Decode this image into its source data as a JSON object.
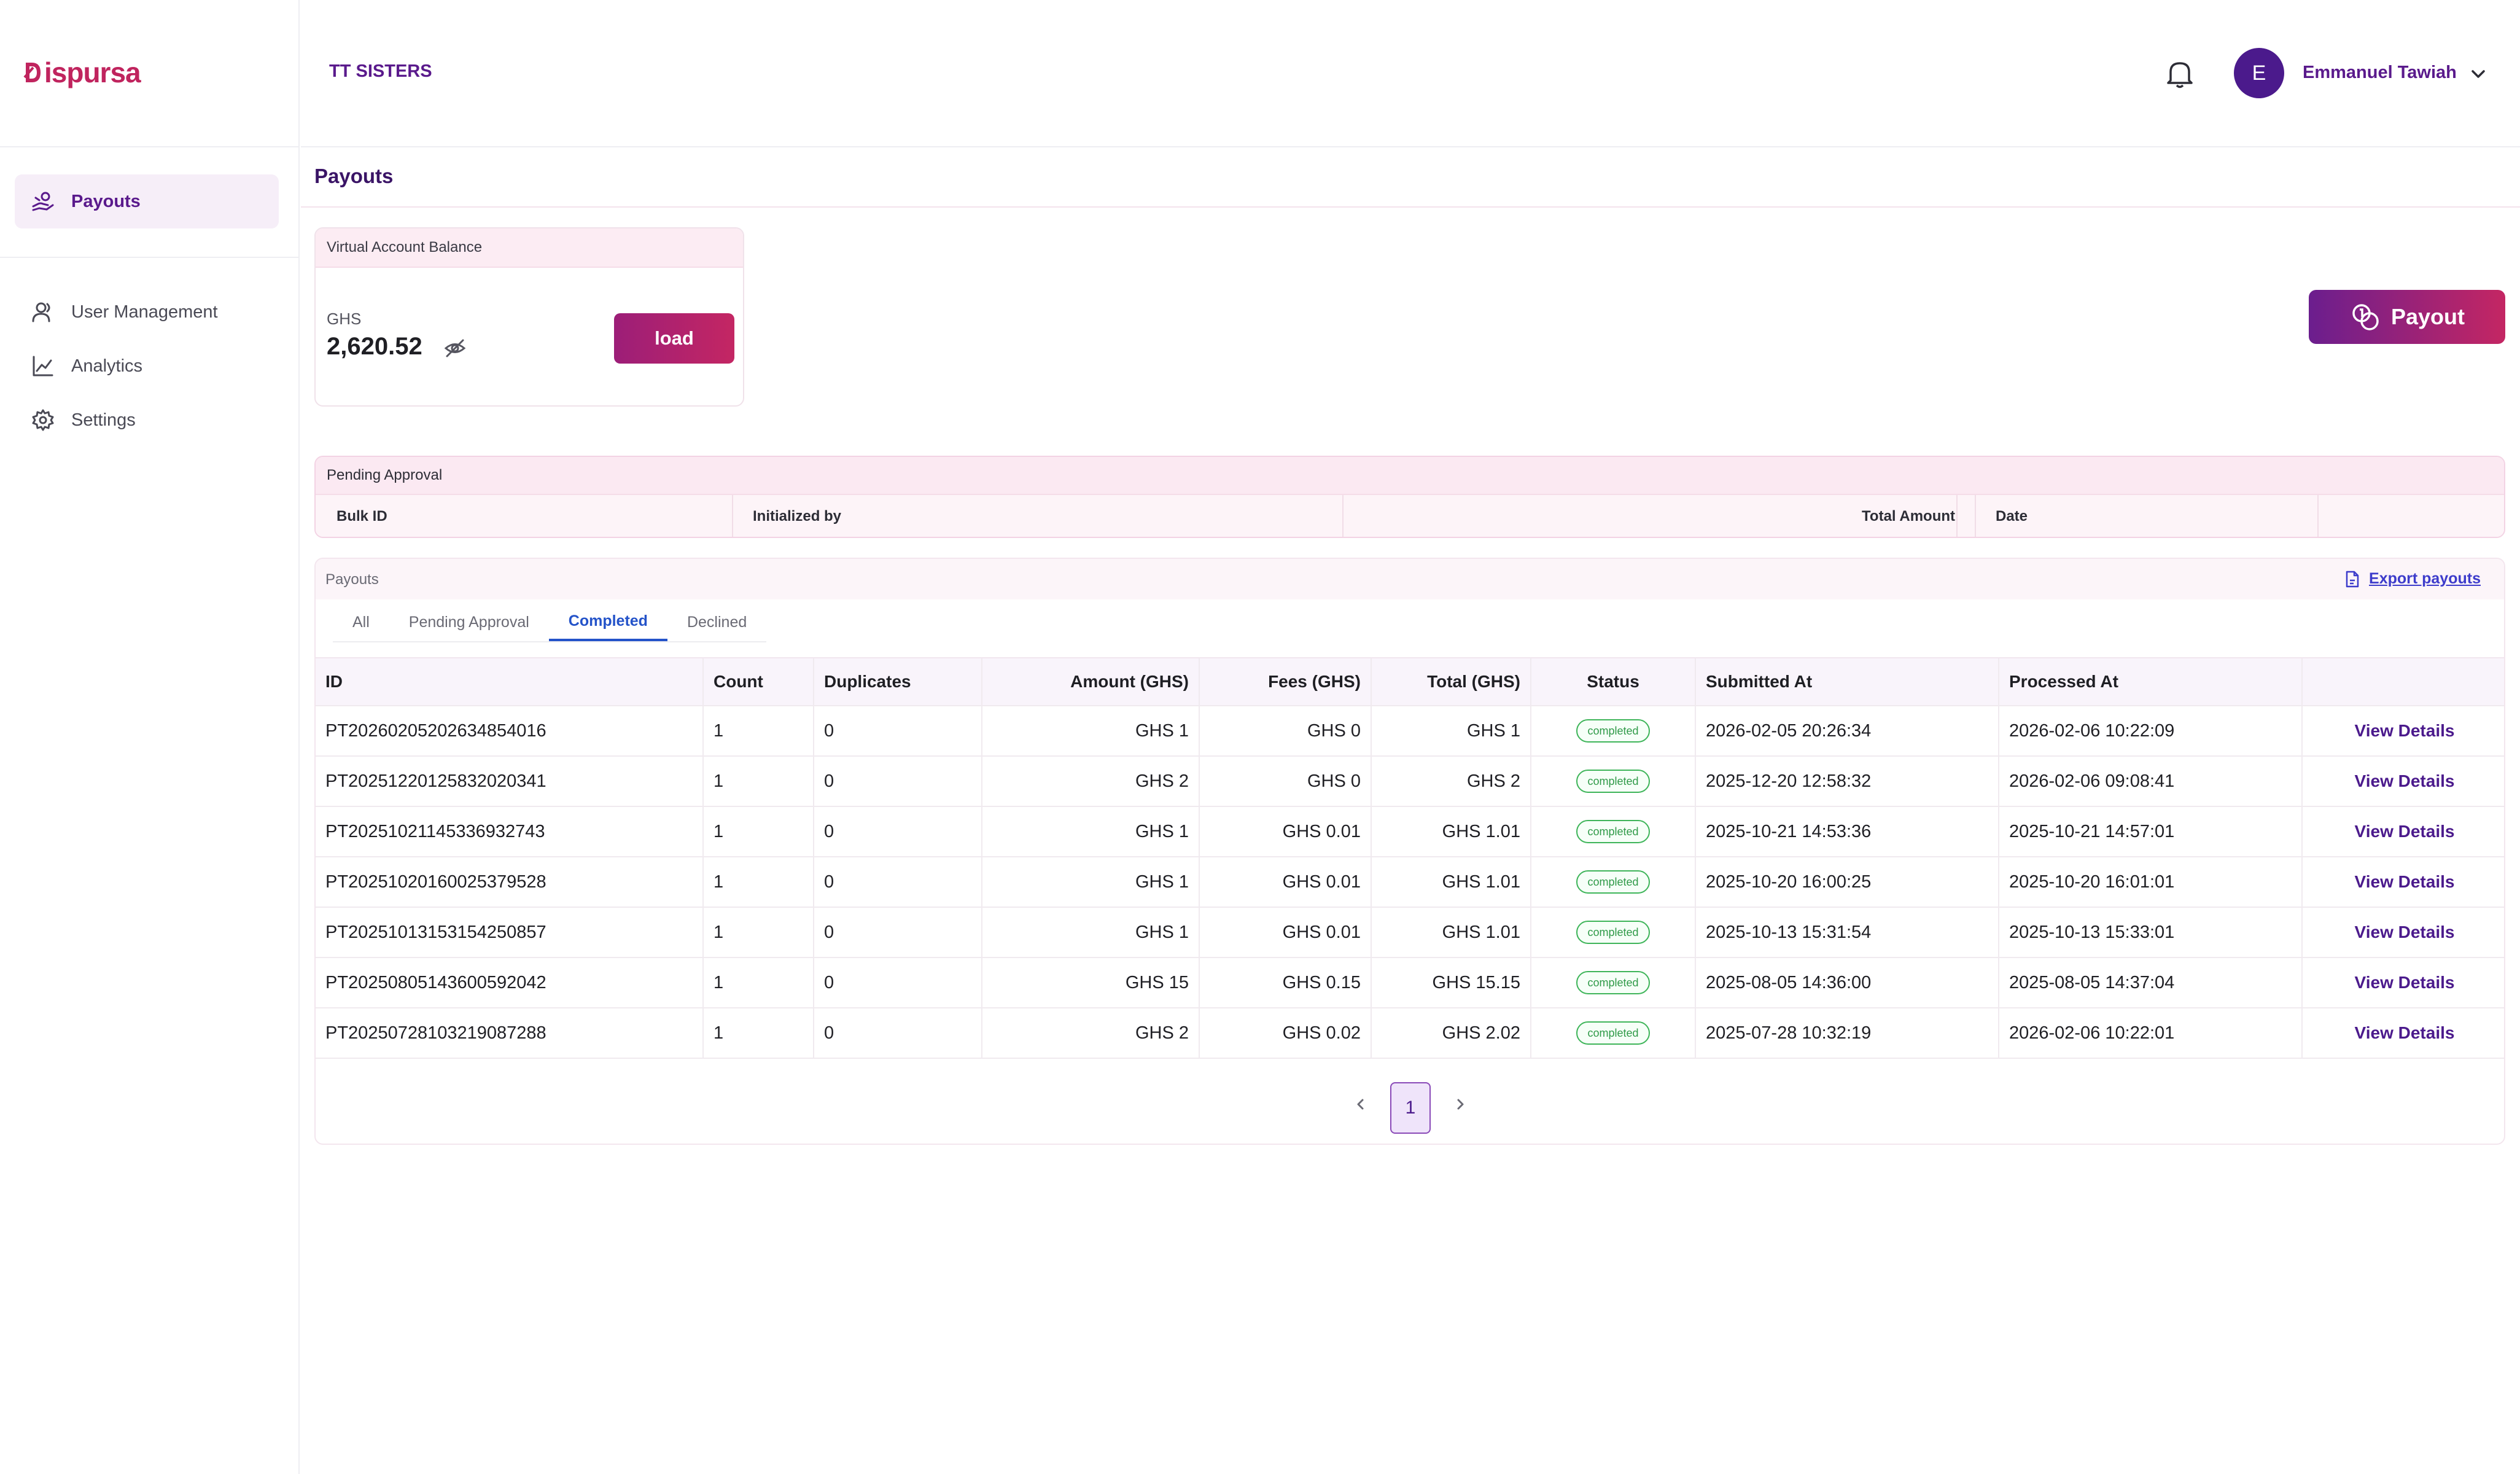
{
  "brand": {
    "logo_text": "ispursa",
    "accent": "#c0245e"
  },
  "sidebar": {
    "items": [
      {
        "label": "Payouts",
        "icon": "payout-hand-icon",
        "active": true
      },
      {
        "label": "User Management",
        "icon": "user-icon"
      },
      {
        "label": "Analytics",
        "icon": "analytics-chart-icon"
      },
      {
        "label": "Settings",
        "icon": "gear-icon"
      }
    ]
  },
  "header": {
    "org_name": "TT SISTERS",
    "user_initial": "E",
    "user_name": "Emmanuel Tawiah"
  },
  "page": {
    "title": "Payouts"
  },
  "balance": {
    "title": "Virtual Account Balance",
    "currency": "GHS",
    "amount": "2,620.52",
    "load_label": "load"
  },
  "payout_button": {
    "label": "Payout"
  },
  "pending": {
    "title": "Pending Approval",
    "columns": [
      "Bulk ID",
      "Initialized by",
      "",
      "Total Amount",
      "Date",
      ""
    ]
  },
  "payouts": {
    "title": "Payouts",
    "export_label": "Export payouts",
    "tabs": [
      "All",
      "Pending Approval",
      "Completed",
      "Declined"
    ],
    "active_tab": "Completed",
    "columns": [
      "ID",
      "Count",
      "Duplicates",
      "Amount (GHS)",
      "Fees (GHS)",
      "Total (GHS)",
      "Status",
      "Submitted At",
      "Processed At",
      ""
    ],
    "rows": [
      {
        "id": "PT20260205202634854016",
        "count": "1",
        "duplicates": "0",
        "amount": "GHS 1",
        "fees": "GHS 0",
        "total": "GHS 1",
        "status": "completed",
        "submitted": "2026-02-05 20:26:34",
        "processed": "2026-02-06 10:22:09",
        "action": "View Details"
      },
      {
        "id": "PT20251220125832020341",
        "count": "1",
        "duplicates": "0",
        "amount": "GHS 2",
        "fees": "GHS 0",
        "total": "GHS 2",
        "status": "completed",
        "submitted": "2025-12-20 12:58:32",
        "processed": "2026-02-06 09:08:41",
        "action": "View Details"
      },
      {
        "id": "PT20251021145336932743",
        "count": "1",
        "duplicates": "0",
        "amount": "GHS 1",
        "fees": "GHS 0.01",
        "total": "GHS 1.01",
        "status": "completed",
        "submitted": "2025-10-21 14:53:36",
        "processed": "2025-10-21 14:57:01",
        "action": "View Details"
      },
      {
        "id": "PT20251020160025379528",
        "count": "1",
        "duplicates": "0",
        "amount": "GHS 1",
        "fees": "GHS 0.01",
        "total": "GHS 1.01",
        "status": "completed",
        "submitted": "2025-10-20 16:00:25",
        "processed": "2025-10-20 16:01:01",
        "action": "View Details"
      },
      {
        "id": "PT20251013153154250857",
        "count": "1",
        "duplicates": "0",
        "amount": "GHS 1",
        "fees": "GHS 0.01",
        "total": "GHS 1.01",
        "status": "completed",
        "submitted": "2025-10-13 15:31:54",
        "processed": "2025-10-13 15:33:01",
        "action": "View Details"
      },
      {
        "id": "PT20250805143600592042",
        "count": "1",
        "duplicates": "0",
        "amount": "GHS 15",
        "fees": "GHS 0.15",
        "total": "GHS 15.15",
        "status": "completed",
        "submitted": "2025-08-05 14:36:00",
        "processed": "2025-08-05 14:37:04",
        "action": "View Details"
      },
      {
        "id": "PT20250728103219087288",
        "count": "1",
        "duplicates": "0",
        "amount": "GHS 2",
        "fees": "GHS 0.02",
        "total": "GHS 2.02",
        "status": "completed",
        "submitted": "2025-07-28 10:32:19",
        "processed": "2026-02-06 10:22:01",
        "action": "View Details"
      }
    ]
  },
  "pagination": {
    "current_page": "1"
  }
}
